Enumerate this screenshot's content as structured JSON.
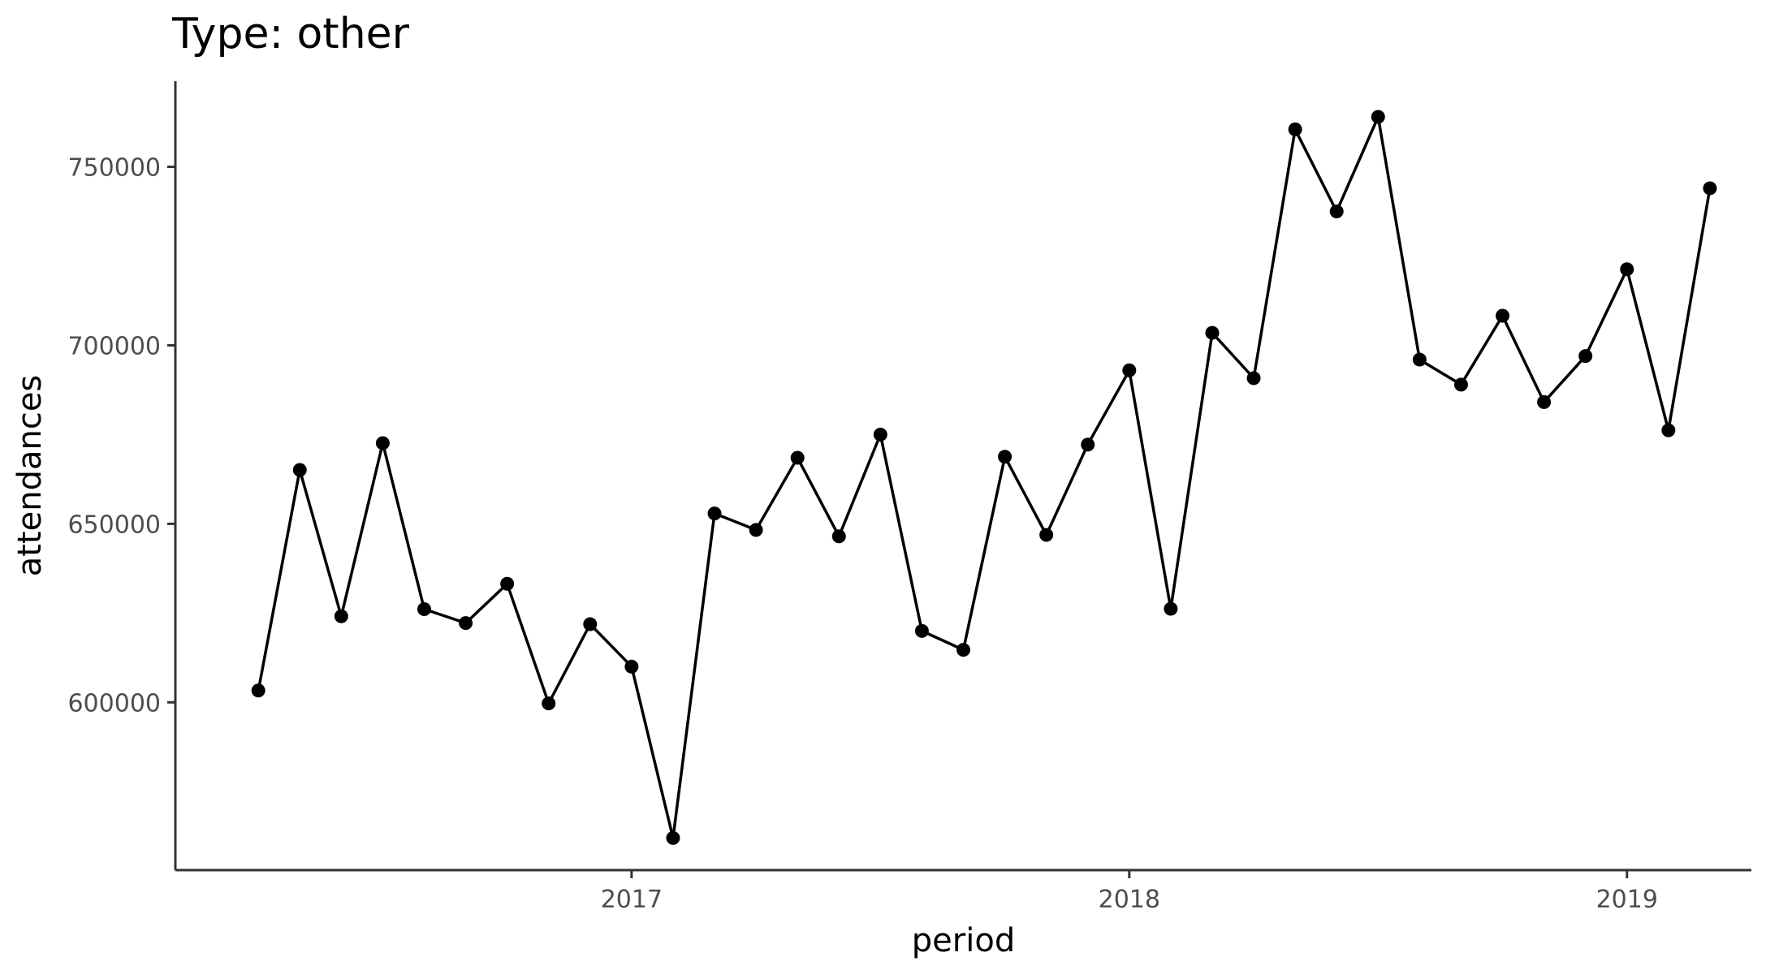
{
  "chart_data": {
    "type": "line",
    "title": "Type: other",
    "xlabel": "period",
    "ylabel": "attendances",
    "x": [
      "2016-04",
      "2016-05",
      "2016-06",
      "2016-07",
      "2016-08",
      "2016-09",
      "2016-10",
      "2016-11",
      "2016-12",
      "2017-01",
      "2017-02",
      "2017-03",
      "2017-04",
      "2017-05",
      "2017-06",
      "2017-07",
      "2017-08",
      "2017-09",
      "2017-10",
      "2017-11",
      "2017-12",
      "2018-01",
      "2018-02",
      "2018-03",
      "2018-04",
      "2018-05",
      "2018-06",
      "2018-07",
      "2018-08",
      "2018-09",
      "2018-10",
      "2018-11",
      "2018-12",
      "2019-01",
      "2019-02",
      "2019-03"
    ],
    "series": [
      {
        "values": [
          603300,
          665100,
          624100,
          672600,
          626100,
          622200,
          633200,
          599700,
          621900,
          610000,
          562000,
          652900,
          648300,
          668500,
          646500,
          675000,
          620000,
          614700,
          668800,
          646900,
          672200,
          693000,
          626200,
          703500,
          690800,
          760500,
          737500,
          764000,
          696000,
          689000,
          708300,
          684100,
          697000,
          721300,
          676200,
          744000
        ],
        "color": "#000000"
      }
    ],
    "x_ticks": [
      {
        "label": "2017",
        "value": "2017-01"
      },
      {
        "label": "2018",
        "value": "2018-01"
      },
      {
        "label": "2019",
        "value": "2019-01"
      }
    ],
    "y_ticks": [
      600000,
      650000,
      700000,
      750000
    ],
    "xlim": [
      "2016-02",
      "2019-04"
    ],
    "ylim": [
      553000,
      774000
    ],
    "grid": false,
    "legend": "none"
  }
}
